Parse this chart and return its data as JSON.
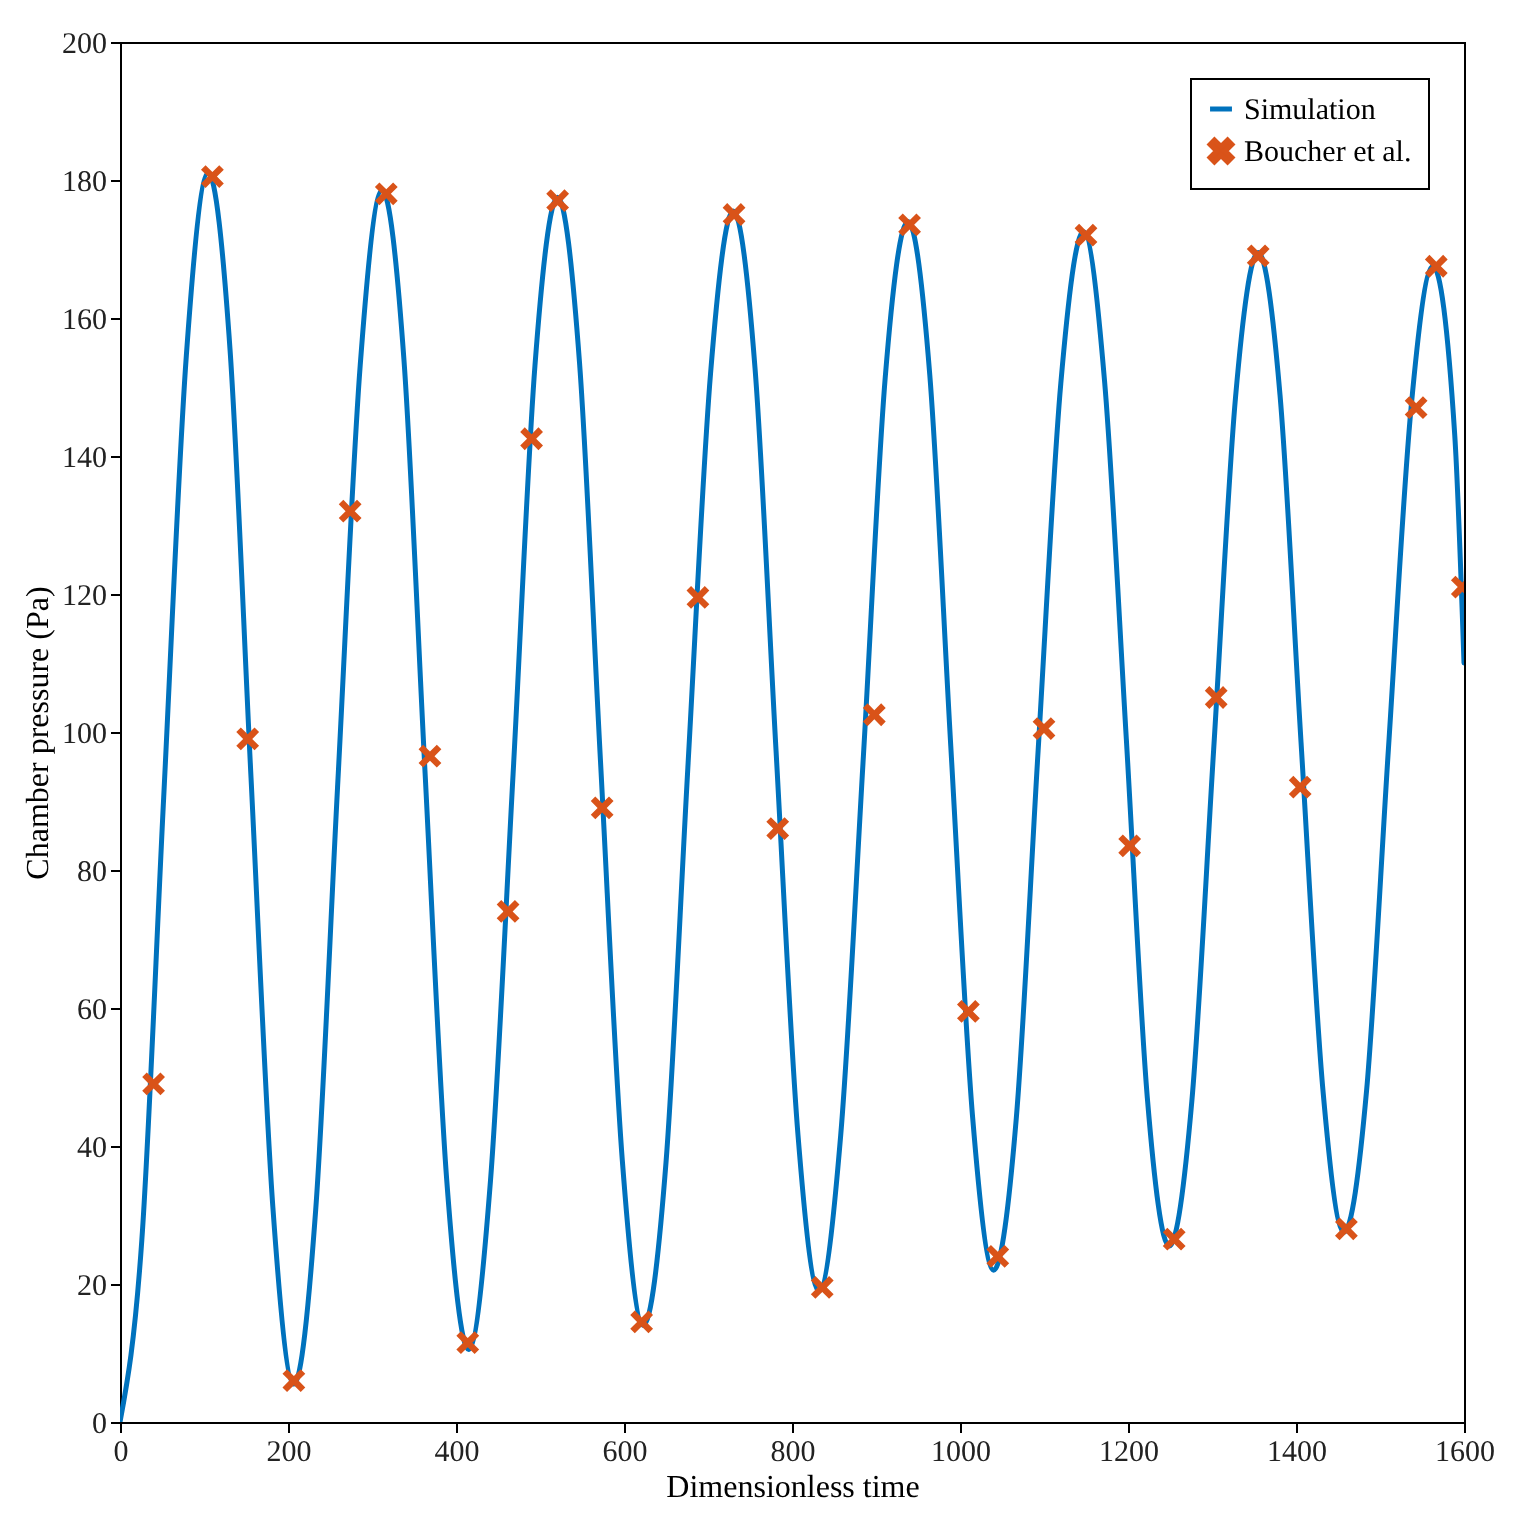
{
  "chart_data": {
    "type": "line",
    "xlabel": "Dimensionless time",
    "ylabel": "Chamber pressure (Pa)",
    "xlim": [
      0,
      1600
    ],
    "ylim": [
      0,
      200
    ],
    "xticks": [
      0,
      200,
      400,
      600,
      800,
      1000,
      1200,
      1400,
      1600
    ],
    "yticks": [
      0,
      20,
      40,
      60,
      80,
      100,
      120,
      140,
      160,
      180,
      200
    ],
    "grid": false,
    "legend": "top right",
    "series": [
      {
        "name": "Simulation",
        "color": "#0072bd",
        "marker": "none",
        "x": [
          0,
          26,
          52,
          79,
          105,
          131,
          156,
          182,
          207,
          233,
          259,
          286,
          312,
          338,
          363,
          389,
          415,
          441,
          468,
          494,
          521,
          547,
          572,
          598,
          623,
          650,
          676,
          703,
          730,
          756,
          781,
          807,
          832,
          858,
          885,
          911,
          938,
          964,
          989,
          1015,
          1040,
          1067,
          1093,
          1120,
          1147,
          1172,
          1198,
          1223,
          1249,
          1276,
          1302,
          1328,
          1355,
          1381,
          1406,
          1432,
          1457,
          1484,
          1510,
          1537,
          1563,
          1589,
          1600
        ],
        "values": [
          0,
          26.4,
          90.5,
          154.6,
          181,
          155.4,
          93.3,
          31.1,
          5.5,
          30.8,
          92,
          153.2,
          178.5,
          154,
          94.5,
          35,
          10.5,
          34.9,
          94,
          153.1,
          177.5,
          153.6,
          95.8,
          37.9,
          14,
          37.6,
          94.8,
          151.9,
          175.5,
          152.7,
          97.3,
          41.8,
          19,
          41.6,
          96.5,
          151.4,
          174,
          151.8,
          98,
          44.2,
          22,
          44,
          97.3,
          150.5,
          172.5,
          151,
          99,
          47,
          25.5,
          46.5,
          97.5,
          148.5,
          169.5,
          148.8,
          98.5,
          48.2,
          27.5,
          48,
          97.5,
          147,
          167.5,
          143,
          110
        ]
      },
      {
        "name": "Boucher et al.",
        "type": "scatter",
        "color": "#d95319",
        "marker": "cross",
        "x": [
          40,
          110,
          152,
          207,
          274,
          317,
          369,
          414,
          462,
          490,
          521,
          574,
          621,
          688,
          731,
          783,
          836,
          898,
          940,
          1010,
          1045,
          1100,
          1150,
          1202,
          1255,
          1305,
          1355,
          1405,
          1460,
          1543,
          1567,
          1598
        ],
        "values": [
          49,
          180.5,
          99,
          6,
          132,
          178,
          96.5,
          11.5,
          74,
          142.5,
          177,
          89,
          14.5,
          119.5,
          175,
          86,
          19.5,
          102.5,
          173.5,
          59.5,
          24,
          100.5,
          172,
          83.5,
          26.5,
          105,
          169,
          92,
          28,
          147,
          167.5,
          121
        ]
      }
    ]
  }
}
